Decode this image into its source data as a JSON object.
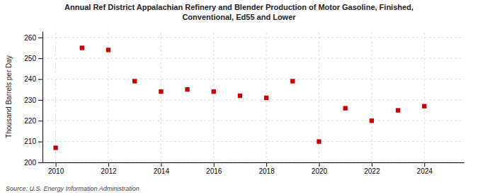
{
  "chart_data": {
    "type": "scatter",
    "title": "Annual Ref District Appalachian Refinery and Blender Production of Motor Gasoline, Finished,\nConventional, Ed55 and Lower",
    "ylabel": "Thousand Barrels per Day",
    "annotations": [
      "Source: U.S. Energy Information Administration"
    ],
    "x": [
      2010,
      2011,
      2012,
      2013,
      2014,
      2015,
      2016,
      2017,
      2018,
      2019,
      2020,
      2021,
      2022,
      2023,
      2024
    ],
    "values": [
      207,
      255,
      254,
      239,
      234,
      235,
      234,
      232,
      231,
      239,
      210,
      226,
      220,
      225,
      227
    ],
    "color": "#cc0000",
    "marker": "square",
    "xlim": [
      2009.5,
      2025.5
    ],
    "ylim": [
      200,
      263
    ],
    "xticks": [
      2010,
      2012,
      2014,
      2016,
      2018,
      2020,
      2022,
      2024
    ],
    "yticks": [
      200,
      210,
      220,
      230,
      240,
      250,
      260
    ],
    "grid": true
  }
}
